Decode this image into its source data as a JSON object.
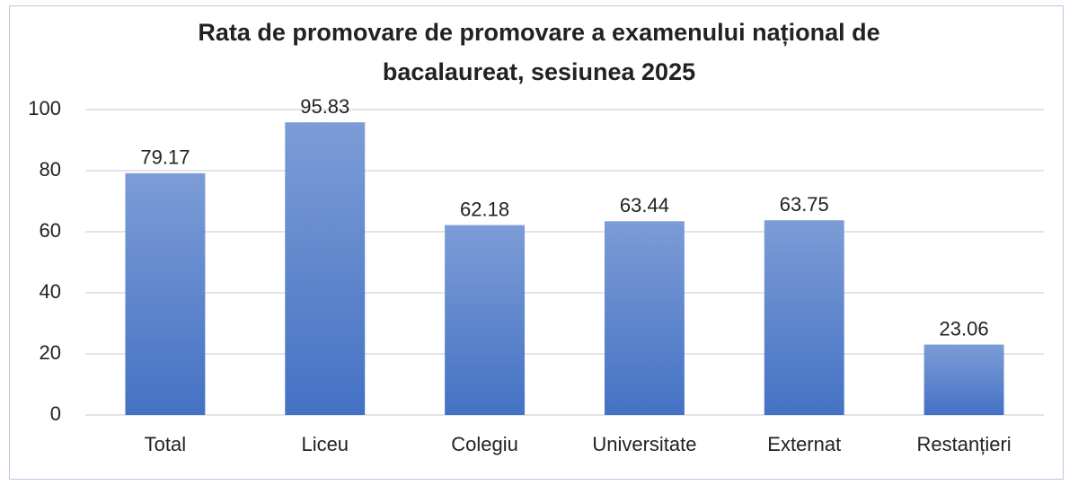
{
  "chart_data": {
    "type": "bar",
    "title": "Rata de promovare de promovare a examenului național de bacalaureat, sesiunea 2025",
    "categories": [
      "Total",
      "Liceu",
      "Colegiu",
      "Universitate",
      "Externat",
      "Restanțieri"
    ],
    "values": [
      79.17,
      95.83,
      62.18,
      63.44,
      63.75,
      23.06
    ],
    "color": "#4472c4",
    "ylim": [
      0,
      100
    ],
    "yticks": [
      0,
      20,
      40,
      60,
      80,
      100
    ],
    "grid": true
  }
}
